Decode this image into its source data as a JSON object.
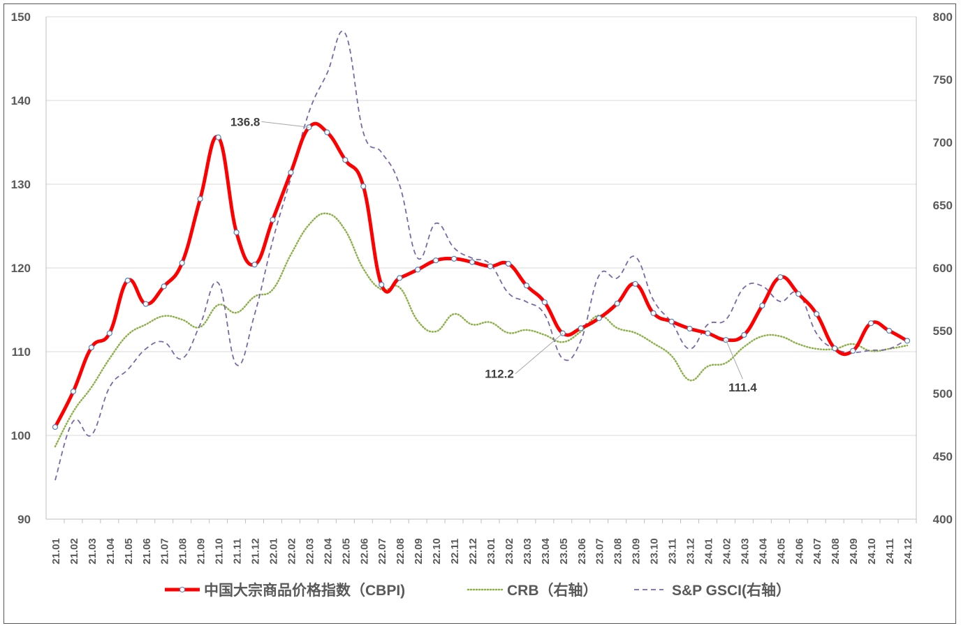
{
  "chart_data": {
    "type": "line",
    "title": "",
    "categories": [
      "21.01",
      "21.02",
      "21.03",
      "21.04",
      "21.05",
      "21.06",
      "21.07",
      "21.08",
      "21.09",
      "21.10",
      "21.11",
      "21.12",
      "22.01",
      "22.02",
      "22.03",
      "22.04",
      "22.05",
      "22.06",
      "22.07",
      "22.08",
      "22.09",
      "22.10",
      "22.11",
      "22.12",
      "23.01",
      "23.02",
      "23.03",
      "23.04",
      "23.05",
      "23.06",
      "23.07",
      "23.08",
      "23.09",
      "23.10",
      "23.11",
      "23.12",
      "24.01",
      "24.02",
      "24.03",
      "24.04",
      "24.05",
      "24.06",
      "24.07",
      "24.08",
      "24.09",
      "24.10",
      "24.11",
      "24.12"
    ],
    "y_left": {
      "range": [
        90,
        150
      ],
      "ticks": [
        "90",
        "100",
        "110",
        "120",
        "130",
        "140",
        "150"
      ]
    },
    "y_right": {
      "range": [
        400,
        800
      ],
      "ticks": [
        "400",
        "450",
        "500",
        "550",
        "600",
        "650",
        "700",
        "750",
        "800"
      ]
    },
    "grid": true,
    "legend_placement": "bottom",
    "series": [
      {
        "name": "中国大宗商品价格指数（CBPI)",
        "axis": "left",
        "color": "#ff0000",
        "style": "solid-markers",
        "values": [
          101.0,
          105.25,
          110.5,
          112.2,
          118.5,
          115.7,
          117.8,
          120.6,
          128.25,
          135.6,
          124.25,
          120.4,
          125.75,
          131.4,
          136.8,
          136.2,
          132.9,
          129.75,
          118.0,
          118.8,
          119.8,
          120.9,
          121.1,
          120.7,
          120.2,
          120.5,
          117.9,
          115.9,
          112.2,
          112.8,
          114.0,
          115.75,
          118.1,
          114.6,
          113.6,
          112.75,
          112.2,
          111.4,
          112.0,
          115.5,
          118.9,
          116.9,
          114.5,
          110.4,
          110.1,
          113.4,
          112.5,
          111.3
        ]
      },
      {
        "name": "CRB（右轴）",
        "axis": "right",
        "color": "#8db04a",
        "style": "dotted",
        "values": [
          457.8,
          485.6,
          505,
          527.8,
          546.7,
          555,
          561.7,
          558.9,
          553,
          570.6,
          564.4,
          577.2,
          582.8,
          610.6,
          634.4,
          643.3,
          630,
          599.4,
          582.8,
          584.4,
          557.8,
          549.4,
          563.3,
          555,
          556.7,
          548.3,
          550.6,
          546.7,
          541,
          549.4,
          562.2,
          552.2,
          548.3,
          540,
          530,
          510.6,
          521.7,
          524.4,
          537.2,
          545.6,
          545.6,
          539.4,
          535.6,
          535.6,
          539.4,
          533.9,
          535.6,
          538.3
        ]
      },
      {
        "name": "S&P GSCI(右轴）",
        "axis": "right",
        "color": "#7a68a6",
        "style": "dashed",
        "values": [
          431,
          478,
          467,
          505,
          519,
          535.6,
          541,
          527.8,
          555,
          588,
          523,
          563,
          621.7,
          671.7,
          724,
          755,
          786.7,
          707.8,
          692,
          666,
          607.8,
          635.6,
          616,
          607.8,
          603,
          580,
          573,
          563,
          527.8,
          542.2,
          594,
          592,
          608.9,
          574.4,
          556.7,
          535.6,
          555,
          558.9,
          584.4,
          585.6,
          573.3,
          580,
          547.8,
          535.6,
          532.8,
          534.4,
          535.6,
          543.3
        ]
      }
    ],
    "annotations": [
      {
        "text": "136.8",
        "series": 0,
        "category": "22.03"
      },
      {
        "text": "112.2",
        "series": 0,
        "category": "23.05"
      },
      {
        "text": "111.4",
        "series": 0,
        "category": "24.02"
      }
    ]
  }
}
